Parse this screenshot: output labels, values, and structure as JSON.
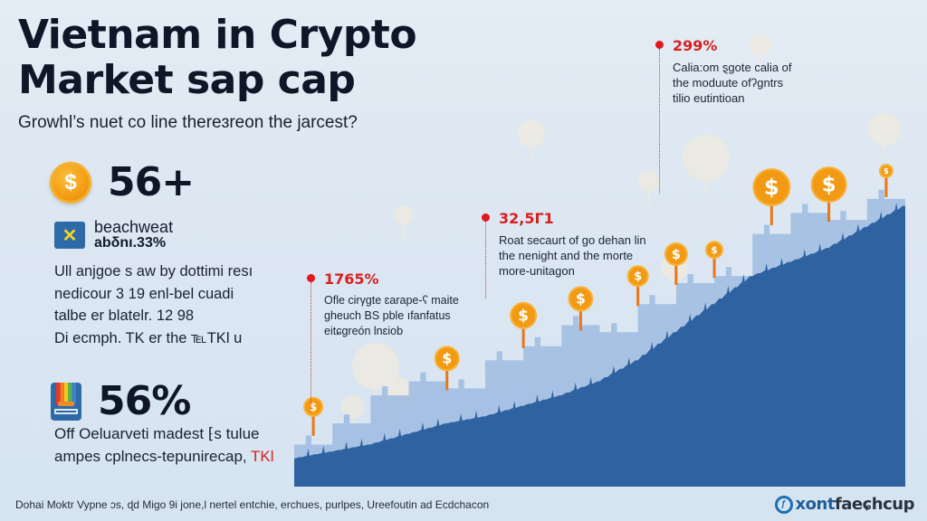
{
  "header": {
    "title_line1": "Vietnam in Crypto",
    "title_line2": "Market sap cap",
    "subtitle": "Growhl’s nuet co line thereɜreon the jarcest?"
  },
  "stats": [
    {
      "icon": "dollar-coin-icon",
      "icon_glyph": "$",
      "value": "56+"
    },
    {
      "icon": "x-tile-icon",
      "icon_glyph": "✕",
      "label": "beachweat",
      "value": "abδnı.33%",
      "description_lines": [
        "Ull anjgoe s aw by dottimi resı",
        "nedicour 3 19 enl-bel cuadi",
        "talbe er blatelr. 12 98",
        "Di ecmph. TK er the ℡TKl u"
      ]
    },
    {
      "icon": "rainbow-tray-icon",
      "value": "56%",
      "description_lines": [
        "Off Oeluarveti madest ⁅s tulue",
        "ampes cplnecs-tepunirecap,"
      ],
      "highlight": "TKl"
    }
  ],
  "callouts": [
    {
      "value": "1765%",
      "lines": [
        "Ofle cirγgte ɛarape-ʕ maite",
        "gheuch BS pble ıfanfatus",
        "eitɕgreón lnɛiob"
      ]
    },
    {
      "value": "32,5Γ1",
      "lines": [
        "Roat secaurt of go dehan lin",
        "the nenight and the morte",
        "more-unitagon"
      ]
    },
    {
      "value": "299%",
      "lines": [
        "Calia:om ȿgote calia of",
        "the moduute ofʔgntrs",
        "tilio eutintioan"
      ]
    }
  ],
  "footer": {
    "source": "Dohai Moktr Vypne ɔs, ɖd Migo 9i jone,l nertel entchie, erchues, purlpes, Ureefoutin ad Ecdchacon",
    "brand_part1": "xont",
    "brand_part2": "faeɕhcup",
    "brand_icon": "globe-logo-icon"
  },
  "colors": {
    "accent_red": "#e3161d",
    "chart_dark": "#2f62a0",
    "chart_light": "#8fb2dc",
    "coin_orange": "#f39a14",
    "background": "#dce7f2"
  },
  "chart_data": {
    "type": "area",
    "title": "",
    "xlabel": "",
    "ylabel": "",
    "x": [
      0,
      1,
      2,
      3,
      4,
      5,
      6,
      7,
      8,
      9,
      10,
      11,
      12,
      13,
      14,
      15,
      16
    ],
    "series": [
      {
        "name": "skyline-background",
        "values": [
          12,
          18,
          26,
          30,
          28,
          36,
          40,
          46,
          44,
          52,
          58,
          60,
          72,
          78,
          76,
          82,
          84
        ]
      },
      {
        "name": "market-cap",
        "values": [
          8,
          10,
          12,
          15,
          18,
          20,
          23,
          26,
          30,
          36,
          44,
          52,
          60,
          64,
          68,
          74,
          80
        ]
      }
    ],
    "ylim": [
      0,
      100
    ],
    "grid": false,
    "legend": "none",
    "annotations": [
      {
        "x": 2,
        "label": "1765%"
      },
      {
        "x": 9,
        "label": "32,5Γ1"
      },
      {
        "x": 14,
        "label": "299%"
      }
    ]
  }
}
